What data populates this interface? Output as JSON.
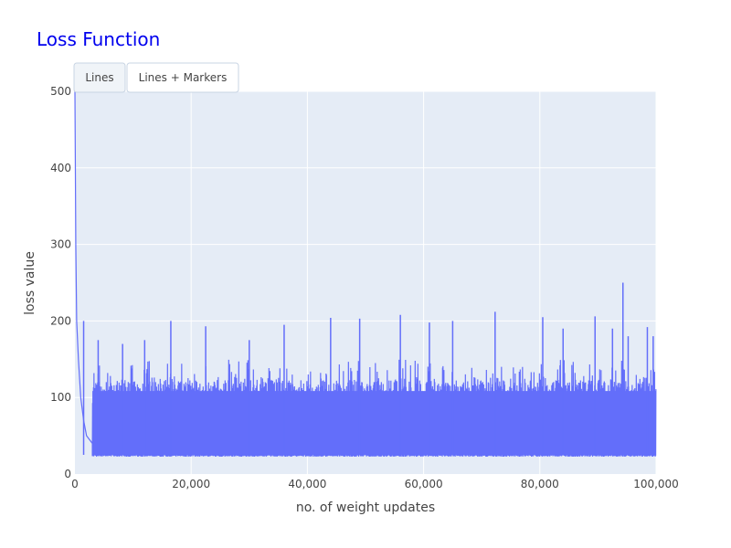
{
  "chart_data": {
    "type": "line",
    "title": "Loss Function",
    "xlabel": "no. of weight updates",
    "ylabel": "loss value",
    "xlim": [
      0,
      100000
    ],
    "ylim": [
      0,
      500
    ],
    "xticks": [
      0,
      20000,
      40000,
      60000,
      80000,
      100000
    ],
    "xtick_labels": [
      "0",
      "20,000",
      "40,000",
      "60,000",
      "80,000",
      "100,000"
    ],
    "yticks": [
      0,
      100,
      200,
      300,
      400,
      500
    ],
    "ytick_labels": [
      "0",
      "100",
      "200",
      "300",
      "400",
      "500"
    ],
    "grid": true,
    "series": [
      {
        "floor": 25,
        "dense_upper": 118,
        "early_x": [
          0,
          150,
          300,
          600,
          1000,
          1500,
          2000,
          3000
        ],
        "early_y": [
          500,
          300,
          200,
          150,
          100,
          70,
          50,
          40
        ],
        "spikes_x": [
          1500,
          4000,
          8200,
          12000,
          16500,
          22500,
          30000,
          36000,
          44000,
          49000,
          56000,
          61000,
          65000,
          72300,
          80500,
          84000,
          89500,
          92500,
          94300,
          95200,
          98500,
          99500
        ],
        "spikes_y": [
          200,
          175,
          170,
          175,
          200,
          193,
          175,
          195,
          204,
          203,
          208,
          198,
          200,
          212,
          205,
          190,
          206,
          190,
          250,
          180,
          192,
          180
        ]
      }
    ]
  },
  "colors": {
    "plot_background": "#E5ECF6",
    "grid": "#FFFFFF",
    "line": "#636EFA",
    "title": "#0000EE"
  },
  "buttons": [
    {
      "label": "Lines",
      "active": true
    },
    {
      "label": "Lines + Markers",
      "active": false
    }
  ]
}
